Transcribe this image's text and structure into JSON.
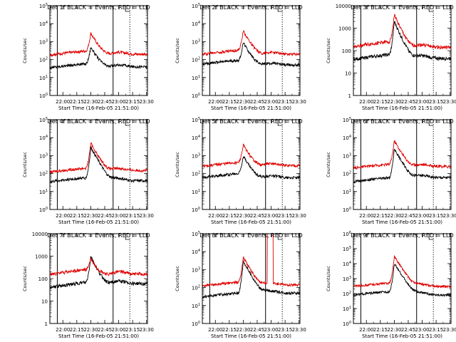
{
  "figure": {
    "xlabel": "Start Time (16-Feb-05 21:51:00)",
    "ylabel": "Counts/sec",
    "x_tick_labels": [
      "22:00",
      "22:15",
      "22:30",
      "22:45",
      "23:00",
      "23:15",
      "23:30"
    ],
    "colors": {
      "events": "#000000",
      "lld": "#e00000",
      "background": "#ffffff",
      "axes": "#000000"
    }
  },
  "chart_data": [
    {
      "type": "line",
      "title": "Det 1f BLACK = Events, RED = LLD",
      "ylabel": "Counts/sec",
      "xlabel": "Start Time (16-Feb-05 21:51:00)",
      "x_range_minutes": [
        -5,
        100
      ],
      "ylim": [
        1,
        100000
      ],
      "y_ticks": [
        1,
        10,
        100,
        1000,
        10000,
        100000
      ],
      "y_tick_labels": [
        "10^0",
        "10^1",
        "10^2",
        "10^3",
        "10^4",
        "10^5"
      ],
      "x_tick_minutes": [
        9,
        24,
        39,
        54,
        69,
        84,
        99
      ],
      "x_tick_labels": [
        "22:00",
        "22:15",
        "22:30",
        "22:45",
        "23:00",
        "23:15",
        "23:30"
      ],
      "solid_vlines_minutes": [
        3,
        63
      ],
      "dotted_vlines_minutes": [
        81
      ],
      "peak_minute": 39,
      "series": [
        {
          "name": "Events",
          "color": "#000000",
          "base": 35,
          "peak": 500,
          "late": 40
        },
        {
          "name": "LLD",
          "color": "#e00000",
          "base": 180,
          "peak": 3000,
          "late": 200
        }
      ]
    },
    {
      "type": "line",
      "title": "Det 2f BLACK = Events, RED = LLD",
      "ylabel": "Counts/sec",
      "xlabel": "Start Time (16-Feb-05 21:51:00)",
      "x_range_minutes": [
        -5,
        100
      ],
      "ylim": [
        1,
        100000
      ],
      "y_ticks": [
        1,
        10,
        100,
        1000,
        10000,
        100000
      ],
      "y_tick_labels": [
        "10^0",
        "10^1",
        "10^2",
        "10^3",
        "10^4",
        "10^5"
      ],
      "x_tick_minutes": [
        9,
        24,
        39,
        54,
        69,
        84,
        99
      ],
      "x_tick_labels": [
        "22:00",
        "22:15",
        "22:30",
        "22:45",
        "23:00",
        "23:15",
        "23:30"
      ],
      "solid_vlines_minutes": [
        3,
        63
      ],
      "dotted_vlines_minutes": [
        81
      ],
      "peak_minute": 39,
      "series": [
        {
          "name": "Events",
          "color": "#000000",
          "base": 55,
          "peak": 900,
          "late": 50
        },
        {
          "name": "LLD",
          "color": "#e00000",
          "base": 200,
          "peak": 4000,
          "late": 200
        }
      ]
    },
    {
      "type": "line",
      "title": "Det 3f BLACK = Events, RED = LLD",
      "ylabel": "Counts/sec",
      "xlabel": "Start Time (16-Feb-05 21:51:00)",
      "x_range_minutes": [
        -5,
        100
      ],
      "ylim": [
        1,
        10000
      ],
      "y_ticks": [
        1,
        10,
        100,
        1000,
        10000
      ],
      "y_tick_labels": [
        "1",
        "10",
        "100",
        "1000",
        "10000"
      ],
      "x_tick_minutes": [
        9,
        24,
        39,
        54,
        69,
        84,
        99
      ],
      "x_tick_labels": [
        "22:00",
        "22:15",
        "22:30",
        "22:45",
        "23:00",
        "23:15",
        "23:30"
      ],
      "solid_vlines_minutes": [
        3,
        63
      ],
      "dotted_vlines_minutes": [
        81
      ],
      "peak_minute": 39,
      "series": [
        {
          "name": "Events",
          "color": "#000000",
          "base": 40,
          "peak": 2000,
          "late": 45
        },
        {
          "name": "LLD",
          "color": "#e00000",
          "base": 150,
          "peak": 4000,
          "late": 140
        }
      ]
    },
    {
      "type": "line",
      "title": "Det 4f BLACK = Events, RED = LLD",
      "ylabel": "Counts/sec",
      "xlabel": "Start Time (16-Feb-05 21:51:00)",
      "x_range_minutes": [
        -5,
        100
      ],
      "ylim": [
        1,
        100000
      ],
      "y_ticks": [
        1,
        10,
        100,
        1000,
        10000,
        100000
      ],
      "y_tick_labels": [
        "10^0",
        "10^1",
        "10^2",
        "10^3",
        "10^4",
        "10^5"
      ],
      "x_tick_minutes": [
        9,
        24,
        39,
        54,
        69,
        84,
        99
      ],
      "x_tick_labels": [
        "22:00",
        "22:15",
        "22:30",
        "22:45",
        "23:00",
        "23:15",
        "23:30"
      ],
      "solid_vlines_minutes": [
        3,
        63
      ],
      "dotted_vlines_minutes": [
        81
      ],
      "peak_minute": 39,
      "series": [
        {
          "name": "Events",
          "color": "#000000",
          "base": 35,
          "peak": 3000,
          "late": 40
        },
        {
          "name": "LLD",
          "color": "#e00000",
          "base": 120,
          "peak": 5000,
          "late": 150
        }
      ]
    },
    {
      "type": "line",
      "title": "Det 5f BLACK = Events, RED = LLD",
      "ylabel": "Counts/sec",
      "xlabel": "Start Time (16-Feb-05 21:51:00)",
      "x_range_minutes": [
        -5,
        100
      ],
      "ylim": [
        1,
        100000
      ],
      "y_ticks": [
        1,
        10,
        100,
        1000,
        10000,
        100000
      ],
      "y_tick_labels": [
        "10^0",
        "10^1",
        "10^2",
        "10^3",
        "10^4",
        "10^5"
      ],
      "x_tick_minutes": [
        9,
        24,
        39,
        54,
        69,
        84,
        99
      ],
      "x_tick_labels": [
        "22:00",
        "22:15",
        "22:30",
        "22:45",
        "23:00",
        "23:15",
        "23:30"
      ],
      "solid_vlines_minutes": [
        3,
        63
      ],
      "dotted_vlines_minutes": [
        81
      ],
      "peak_minute": 39,
      "series": [
        {
          "name": "Events",
          "color": "#000000",
          "base": 60,
          "peak": 1000,
          "late": 60
        },
        {
          "name": "LLD",
          "color": "#e00000",
          "base": 250,
          "peak": 4000,
          "late": 280
        }
      ]
    },
    {
      "type": "line",
      "title": "Det 6f BLACK = Events, RED = LLD",
      "ylabel": "Counts/sec",
      "xlabel": "Start Time (16-Feb-05 21:51:00)",
      "x_range_minutes": [
        -5,
        100
      ],
      "ylim": [
        1,
        100000
      ],
      "y_ticks": [
        1,
        10,
        100,
        1000,
        10000,
        100000
      ],
      "y_tick_labels": [
        "10^0",
        "10^1",
        "10^2",
        "10^3",
        "10^4",
        "10^5"
      ],
      "x_tick_minutes": [
        9,
        24,
        39,
        54,
        69,
        84,
        99
      ],
      "x_tick_labels": [
        "22:00",
        "22:15",
        "22:30",
        "22:45",
        "23:00",
        "23:15",
        "23:30"
      ],
      "solid_vlines_minutes": [
        3,
        63
      ],
      "dotted_vlines_minutes": [
        81
      ],
      "peak_minute": 39,
      "series": [
        {
          "name": "Events",
          "color": "#000000",
          "base": 35,
          "peak": 2500,
          "late": 60
        },
        {
          "name": "LLD",
          "color": "#e00000",
          "base": 200,
          "peak": 7000,
          "late": 250
        }
      ]
    },
    {
      "type": "line",
      "title": "Det 7f BLACK = Events, RED = LLD",
      "ylabel": "Counts/sec",
      "xlabel": "Start Time (16-Feb-05 21:51:00)",
      "x_range_minutes": [
        -5,
        100
      ],
      "ylim": [
        1,
        10000
      ],
      "y_ticks": [
        1,
        10,
        100,
        1000,
        10000
      ],
      "y_tick_labels": [
        "1",
        "10",
        "100",
        "1000",
        "10000"
      ],
      "x_tick_minutes": [
        9,
        24,
        39,
        54,
        69,
        84,
        99
      ],
      "x_tick_labels": [
        "22:00",
        "22:15",
        "22:30",
        "22:45",
        "23:00",
        "23:15",
        "23:30"
      ],
      "solid_vlines_minutes": [
        3,
        63
      ],
      "dotted_vlines_minutes": [
        81
      ],
      "peak_minute": 39,
      "series": [
        {
          "name": "Events",
          "color": "#000000",
          "base": 40,
          "peak": 1000,
          "late": 60
        },
        {
          "name": "LLD",
          "color": "#e00000",
          "base": 150,
          "peak": 800,
          "late": 160
        }
      ]
    },
    {
      "type": "line",
      "title": "Det 8f BLACK = Events, RED = LLD",
      "ylabel": "Counts/sec",
      "xlabel": "Start Time (16-Feb-05 21:51:00)",
      "x_range_minutes": [
        -5,
        100
      ],
      "ylim": [
        1,
        100000
      ],
      "y_ticks": [
        1,
        10,
        100,
        1000,
        10000,
        100000
      ],
      "y_tick_labels": [
        "10^0",
        "10^1",
        "10^2",
        "10^3",
        "10^4",
        "10^5"
      ],
      "x_tick_minutes": [
        9,
        24,
        39,
        54,
        69,
        84,
        99
      ],
      "x_tick_labels": [
        "22:00",
        "22:15",
        "22:30",
        "22:45",
        "23:00",
        "23:15",
        "23:30"
      ],
      "solid_vlines_minutes": [
        3,
        63
      ],
      "dotted_vlines_minutes": [
        81
      ],
      "peak_minute": 39,
      "spike": {
        "start_minute": 65,
        "end_minute": 71,
        "value": 2000000
      },
      "series": [
        {
          "name": "Events",
          "color": "#000000",
          "base": 30,
          "peak": 3000,
          "late": 50
        },
        {
          "name": "LLD",
          "color": "#e00000",
          "base": 120,
          "peak": 5000,
          "late": 140
        }
      ]
    },
    {
      "type": "line",
      "title": "Det 9f BLACK = Events, RED = LLD",
      "ylabel": "Counts/sec",
      "xlabel": "Start Time (16-Feb-05 21:51:00)",
      "x_range_minutes": [
        -5,
        100
      ],
      "ylim": [
        1,
        1000000
      ],
      "y_ticks": [
        1,
        10,
        100,
        1000,
        10000,
        100000,
        1000000
      ],
      "y_tick_labels": [
        "10^0",
        "10^1",
        "10^2",
        "10^3",
        "10^4",
        "10^5",
        "10^6"
      ],
      "x_tick_minutes": [
        9,
        24,
        39,
        54,
        69,
        84,
        99
      ],
      "x_tick_labels": [
        "22:00",
        "22:15",
        "22:30",
        "22:45",
        "23:00",
        "23:15",
        "23:30"
      ],
      "solid_vlines_minutes": [
        3,
        63
      ],
      "dotted_vlines_minutes": [
        81
      ],
      "peak_minute": 39,
      "series": [
        {
          "name": "Events",
          "color": "#000000",
          "base": 80,
          "peak": 10000,
          "late": 80
        },
        {
          "name": "LLD",
          "color": "#e00000",
          "base": 300,
          "peak": 30000,
          "late": 300
        }
      ]
    }
  ]
}
